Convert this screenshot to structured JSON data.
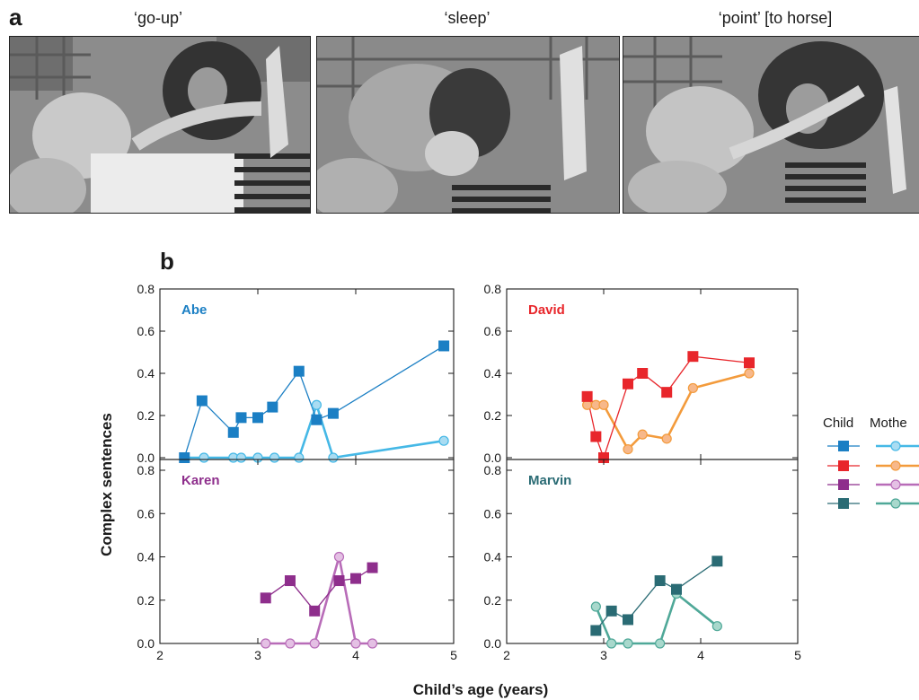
{
  "panel_a": {
    "letter": "a",
    "frames": [
      {
        "caption": "‘go-up’"
      },
      {
        "caption": "‘sleep’"
      },
      {
        "caption": "‘point’ [to horse]"
      }
    ]
  },
  "panel_b": {
    "letter": "b"
  },
  "colors": {
    "abe_child": "#1b7fc4",
    "abe_mother": "#45b8e6",
    "abe_mother_fill": "#a9dcf2",
    "david_child": "#e8262b",
    "david_mother": "#f39b3c",
    "david_mother_fill": "#f7b88a",
    "karen_child": "#8e2e8c",
    "karen_mother": "#b86cb8",
    "karen_mother_fill": "#e4c0e4",
    "marvin_child": "#2a6b74",
    "marvin_mother": "#4fa898",
    "marvin_mother_fill": "#a8d8cc"
  },
  "chart_data": {
    "type": "line",
    "ylabel": "Complex sentences",
    "xlabel": "Child’s age (years)",
    "xlim": [
      2,
      5
    ],
    "ylim": [
      0,
      0.8
    ],
    "xticks": [
      "2",
      "3",
      "4",
      "5"
    ],
    "yticks": [
      "0.0",
      "0.2",
      "0.4",
      "0.6",
      "0.8"
    ],
    "legend": {
      "child_label": "Child",
      "mother_label": "Mothe",
      "placement": "right"
    },
    "panels": [
      {
        "name": "Abe",
        "child": {
          "x": [
            2.25,
            2.43,
            2.75,
            2.83,
            3.0,
            3.15,
            3.42,
            3.6,
            3.77,
            4.9
          ],
          "y": [
            0.0,
            0.27,
            0.12,
            0.19,
            0.19,
            0.24,
            0.41,
            0.18,
            0.21,
            0.53
          ]
        },
        "mother": {
          "x": [
            2.25,
            2.45,
            2.75,
            2.83,
            3.0,
            3.17,
            3.42,
            3.6,
            3.77,
            4.9
          ],
          "y": [
            0.0,
            0.0,
            0.0,
            0.0,
            0.0,
            0.0,
            0.0,
            0.25,
            0.0,
            0.08
          ]
        }
      },
      {
        "name": "David",
        "child": {
          "x": [
            2.83,
            2.92,
            3.0,
            3.25,
            3.4,
            3.65,
            3.92,
            4.5
          ],
          "y": [
            0.29,
            0.1,
            0.0,
            0.35,
            0.4,
            0.31,
            0.48,
            0.45
          ]
        },
        "mother": {
          "x": [
            2.83,
            2.92,
            3.0,
            3.25,
            3.4,
            3.65,
            3.92,
            4.5
          ],
          "y": [
            0.25,
            0.25,
            0.25,
            0.04,
            0.11,
            0.09,
            0.33,
            0.4
          ]
        }
      },
      {
        "name": "Karen",
        "child": {
          "x": [
            3.08,
            3.33,
            3.58,
            3.83,
            4.0,
            4.17
          ],
          "y": [
            0.21,
            0.29,
            0.15,
            0.29,
            0.3,
            0.35
          ]
        },
        "mother": {
          "x": [
            3.08,
            3.33,
            3.58,
            3.83,
            4.0,
            4.17
          ],
          "y": [
            0.0,
            0.0,
            0.0,
            0.4,
            0.0,
            0.0
          ]
        }
      },
      {
        "name": "Marvin",
        "child": {
          "x": [
            2.92,
            3.08,
            3.25,
            3.58,
            3.75,
            4.17
          ],
          "y": [
            0.06,
            0.15,
            0.11,
            0.29,
            0.25,
            0.38
          ]
        },
        "mother": {
          "x": [
            2.92,
            3.08,
            3.25,
            3.58,
            3.75,
            4.17
          ],
          "y": [
            0.17,
            0.0,
            0.0,
            0.0,
            0.23,
            0.08
          ]
        }
      }
    ]
  }
}
